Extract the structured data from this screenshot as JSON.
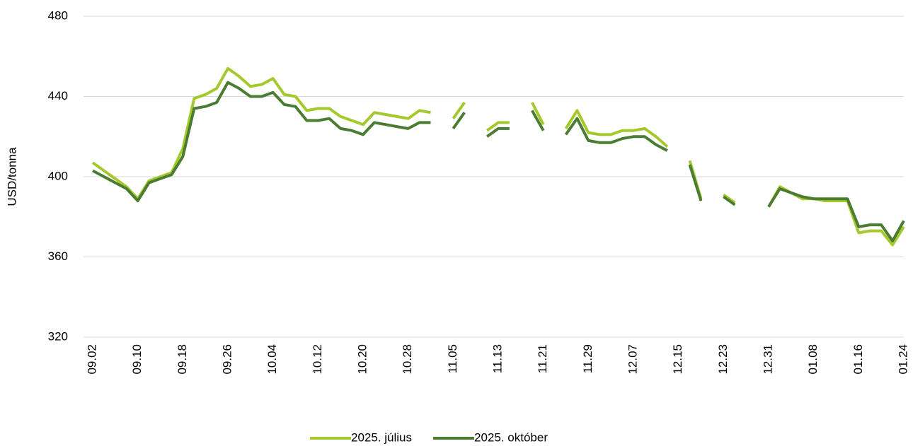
{
  "chart_data": {
    "type": "line",
    "ylabel": "USD/tonna",
    "categories": [
      "09.02",
      null,
      null,
      null,
      "09.10",
      null,
      null,
      null,
      "09.18",
      null,
      null,
      null,
      "09.26",
      null,
      null,
      null,
      "10.04",
      null,
      null,
      null,
      "10.12",
      null,
      null,
      null,
      "10.20",
      null,
      null,
      null,
      "10.28",
      null,
      null,
      null,
      "11.05",
      null,
      null,
      null,
      "11.13",
      null,
      null,
      null,
      "11.21",
      null,
      null,
      null,
      "11.29",
      null,
      null,
      null,
      "12.07",
      null,
      null,
      null,
      "12.15",
      null,
      null,
      null,
      "12.23",
      null,
      null,
      null,
      "12.31",
      null,
      null,
      null,
      "01.08",
      null,
      null,
      null,
      "01.16",
      null,
      null,
      null,
      "01.24"
    ],
    "series": [
      {
        "name": "2025. július",
        "color": "#a5c82d",
        "values": [
          407,
          403,
          399,
          395,
          389,
          398,
          400,
          402,
          414,
          439,
          441,
          444,
          454,
          450,
          445,
          446,
          449,
          441,
          440,
          433,
          434,
          434,
          430,
          428,
          426,
          432,
          431,
          430,
          429,
          433,
          432,
          null,
          429,
          437,
          null,
          423,
          427,
          427,
          null,
          437,
          426,
          null,
          424,
          433,
          422,
          421,
          421,
          423,
          423,
          424,
          420,
          415,
          null,
          408,
          389,
          null,
          391,
          387,
          null,
          null,
          385,
          395,
          392,
          389,
          389,
          388,
          388,
          388,
          372,
          373,
          373,
          366,
          375
        ]
      },
      {
        "name": "2025. október",
        "color": "#4a7d32",
        "values": [
          403,
          400,
          397,
          394,
          388,
          397,
          399,
          401,
          410,
          434,
          435,
          437,
          447,
          444,
          440,
          440,
          442,
          436,
          435,
          428,
          428,
          429,
          424,
          423,
          421,
          427,
          426,
          425,
          424,
          427,
          427,
          null,
          424,
          432,
          null,
          420,
          424,
          424,
          null,
          433,
          423,
          null,
          421,
          429,
          418,
          417,
          417,
          419,
          420,
          420,
          416,
          413,
          null,
          406,
          388,
          null,
          390,
          386,
          null,
          null,
          385,
          394,
          392,
          390,
          389,
          389,
          389,
          389,
          375,
          376,
          376,
          368,
          378
        ]
      }
    ],
    "ylim": [
      320,
      480
    ],
    "yticks": [
      320,
      360,
      400,
      440,
      480
    ],
    "grid": true,
    "legend": "bottom"
  }
}
